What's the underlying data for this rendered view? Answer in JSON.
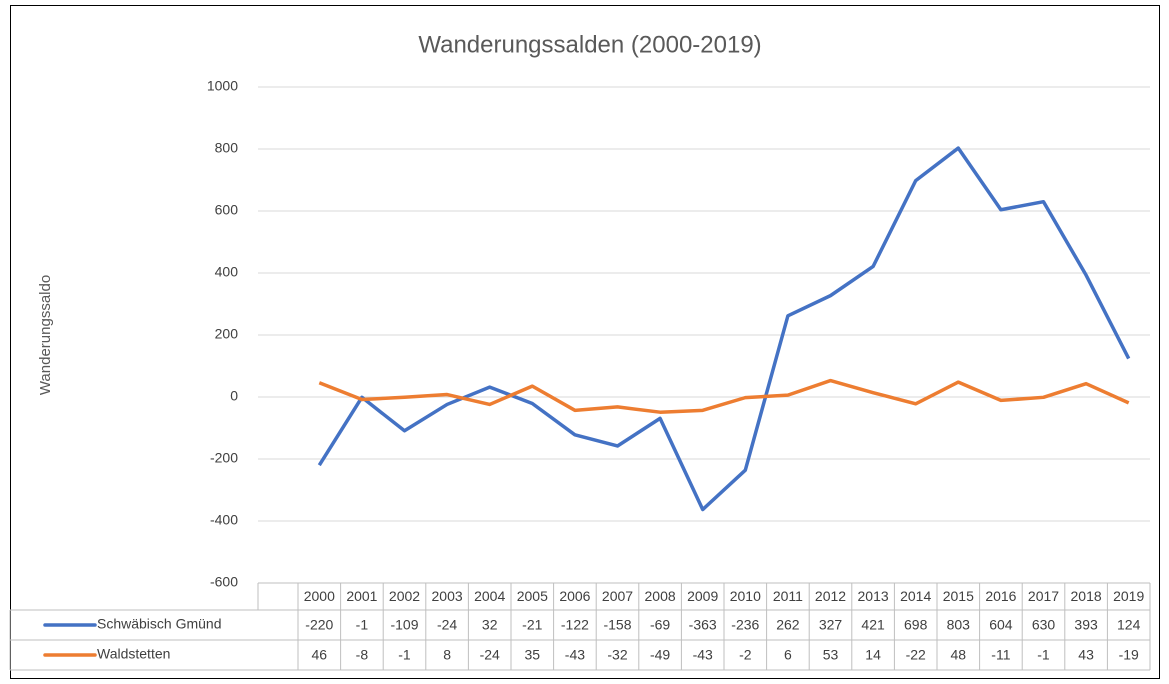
{
  "chart_data": {
    "type": "line",
    "title": "Wanderungssalden (2000-2019)",
    "y_label": "Wanderungssaldo",
    "categories": [
      "2000",
      "2001",
      "2002",
      "2003",
      "2004",
      "2005",
      "2006",
      "2007",
      "2008",
      "2009",
      "2010",
      "2011",
      "2012",
      "2013",
      "2014",
      "2015",
      "2016",
      "2017",
      "2018",
      "2019"
    ],
    "series": [
      {
        "name": "Schwäbisch Gmünd",
        "color": "#4472c4",
        "values": [
          -220,
          -1,
          -109,
          -24,
          32,
          -21,
          -122,
          -158,
          -69,
          -363,
          -236,
          262,
          327,
          421,
          698,
          803,
          604,
          630,
          393,
          124
        ]
      },
      {
        "name": "Waldstetten",
        "color": "#ed7d31",
        "values": [
          46,
          -8,
          -1,
          8,
          -24,
          35,
          -43,
          -32,
          -49,
          -43,
          -2,
          6,
          53,
          14,
          -22,
          48,
          -11,
          -1,
          43,
          -19
        ]
      }
    ],
    "ylim": [
      -600,
      1000
    ],
    "yticks": [
      -600,
      -400,
      -200,
      0,
      200,
      400,
      600,
      800,
      1000
    ],
    "grid": true,
    "data_table": true
  }
}
